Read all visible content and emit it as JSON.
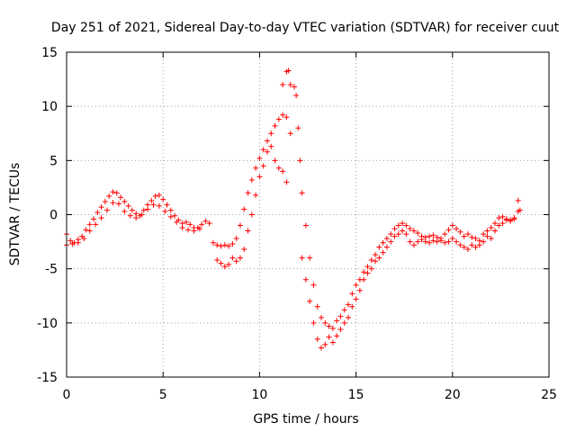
{
  "chart_data": {
    "type": "scatter",
    "title": "Day 251 of 2021, Sidereal Day-to-day VTEC variation (SDTVAR) for receiver cuut",
    "xlabel": "GPS time / hours",
    "ylabel": "SDTVAR / TECUs",
    "xlim": [
      0,
      25
    ],
    "ylim": [
      -15,
      15
    ],
    "xticks": [
      "0",
      "5",
      "10",
      "15",
      "20",
      "25"
    ],
    "yticks": [
      "-15",
      "-10",
      "-5",
      "0",
      "5",
      "10",
      "15"
    ],
    "grid": true,
    "marker": "plus",
    "series": [
      {
        "name": "SDTVAR",
        "color": "#ff0000",
        "points": [
          [
            0.0,
            -1.8
          ],
          [
            0.2,
            -2.4
          ],
          [
            0.4,
            -2.6
          ],
          [
            0.6,
            -2.3
          ],
          [
            0.8,
            -2.0
          ],
          [
            1.0,
            -1.4
          ],
          [
            1.2,
            -0.9
          ],
          [
            1.4,
            -0.4
          ],
          [
            1.6,
            0.2
          ],
          [
            1.8,
            0.7
          ],
          [
            2.0,
            1.2
          ],
          [
            2.2,
            1.7
          ],
          [
            2.4,
            2.1
          ],
          [
            2.6,
            2.0
          ],
          [
            2.8,
            1.6
          ],
          [
            3.0,
            1.2
          ],
          [
            3.2,
            0.8
          ],
          [
            3.4,
            0.4
          ],
          [
            3.6,
            0.1
          ],
          [
            3.8,
            -0.1
          ],
          [
            4.0,
            0.4
          ],
          [
            4.2,
            0.9
          ],
          [
            4.4,
            1.3
          ],
          [
            4.6,
            1.7
          ],
          [
            4.8,
            1.8
          ],
          [
            5.0,
            1.4
          ],
          [
            5.2,
            0.9
          ],
          [
            5.4,
            0.4
          ],
          [
            5.6,
            -0.1
          ],
          [
            5.8,
            -0.5
          ],
          [
            6.0,
            -0.8
          ],
          [
            6.2,
            -0.7
          ],
          [
            6.4,
            -0.9
          ],
          [
            6.6,
            -1.2
          ],
          [
            6.8,
            -1.2
          ],
          [
            7.0,
            -0.9
          ],
          [
            7.2,
            -0.6
          ],
          [
            7.4,
            -0.8
          ],
          [
            7.6,
            -2.6
          ],
          [
            7.8,
            -2.8
          ],
          [
            8.0,
            -2.9
          ],
          [
            8.2,
            -2.8
          ],
          [
            8.4,
            -2.9
          ],
          [
            8.6,
            -2.7
          ],
          [
            8.8,
            -2.2
          ],
          [
            9.0,
            -1.0
          ],
          [
            9.2,
            0.5
          ],
          [
            9.4,
            2.0
          ],
          [
            9.6,
            3.2
          ],
          [
            9.8,
            4.3
          ],
          [
            10.0,
            5.2
          ],
          [
            10.2,
            6.0
          ],
          [
            10.4,
            6.8
          ],
          [
            10.6,
            7.5
          ],
          [
            10.8,
            8.2
          ],
          [
            11.0,
            8.8
          ],
          [
            11.2,
            9.2
          ],
          [
            11.4,
            9.0
          ],
          [
            11.6,
            7.5
          ],
          [
            11.2,
            12.0
          ],
          [
            11.4,
            13.2
          ],
          [
            11.5,
            13.3
          ],
          [
            11.6,
            12.0
          ],
          [
            11.8,
            11.8
          ],
          [
            11.9,
            11.0
          ],
          [
            12.0,
            8.0
          ],
          [
            12.1,
            5.0
          ],
          [
            12.2,
            2.0
          ],
          [
            12.4,
            -1.0
          ],
          [
            12.6,
            -4.0
          ],
          [
            12.8,
            -6.5
          ],
          [
            13.0,
            -8.5
          ],
          [
            13.2,
            -9.5
          ],
          [
            13.4,
            -10.0
          ],
          [
            13.6,
            -10.3
          ],
          [
            13.8,
            -10.5
          ],
          [
            14.0,
            -9.8
          ],
          [
            14.2,
            -9.4
          ],
          [
            14.4,
            -8.8
          ],
          [
            14.6,
            -8.3
          ],
          [
            14.8,
            -7.3
          ],
          [
            15.0,
            -6.5
          ],
          [
            15.2,
            -6.0
          ],
          [
            15.4,
            -5.3
          ],
          [
            15.6,
            -4.8
          ],
          [
            15.8,
            -4.2
          ],
          [
            16.0,
            -3.7
          ],
          [
            16.2,
            -3.0
          ],
          [
            16.4,
            -2.6
          ],
          [
            16.6,
            -2.2
          ],
          [
            16.8,
            -1.8
          ],
          [
            17.0,
            -1.3
          ],
          [
            17.2,
            -1.0
          ],
          [
            17.4,
            -0.8
          ],
          [
            17.6,
            -1.0
          ],
          [
            17.8,
            -1.3
          ],
          [
            18.0,
            -1.5
          ],
          [
            18.2,
            -1.7
          ],
          [
            18.4,
            -2.0
          ],
          [
            18.6,
            -2.1
          ],
          [
            18.8,
            -2.0
          ],
          [
            19.0,
            -1.9
          ],
          [
            19.2,
            -2.1
          ],
          [
            19.4,
            -2.2
          ],
          [
            19.6,
            -1.8
          ],
          [
            19.8,
            -1.4
          ],
          [
            20.0,
            -1.0
          ],
          [
            20.2,
            -1.3
          ],
          [
            20.4,
            -1.6
          ],
          [
            20.6,
            -2.0
          ],
          [
            20.8,
            -1.8
          ],
          [
            21.0,
            -2.1
          ],
          [
            21.2,
            -2.2
          ],
          [
            21.4,
            -2.4
          ],
          [
            21.6,
            -1.8
          ],
          [
            21.8,
            -1.5
          ],
          [
            22.0,
            -1.2
          ],
          [
            22.2,
            -0.8
          ],
          [
            22.4,
            -0.3
          ],
          [
            22.6,
            -0.2
          ],
          [
            22.8,
            -0.4
          ],
          [
            23.0,
            -0.5
          ],
          [
            23.2,
            -0.3
          ],
          [
            23.4,
            0.3
          ],
          [
            23.5,
            0.4
          ],
          [
            0.0,
            -2.8
          ],
          [
            0.3,
            -2.7
          ],
          [
            0.6,
            -2.6
          ],
          [
            0.9,
            -2.2
          ],
          [
            1.2,
            -1.5
          ],
          [
            1.5,
            -0.9
          ],
          [
            1.8,
            -0.3
          ],
          [
            2.1,
            0.4
          ],
          [
            2.4,
            1.1
          ],
          [
            2.7,
            1.0
          ],
          [
            3.0,
            0.3
          ],
          [
            3.3,
            -0.1
          ],
          [
            3.6,
            -0.3
          ],
          [
            3.9,
            0.0
          ],
          [
            4.2,
            0.5
          ],
          [
            4.5,
            0.9
          ],
          [
            4.8,
            0.8
          ],
          [
            5.1,
            0.3
          ],
          [
            5.4,
            -0.2
          ],
          [
            5.7,
            -0.7
          ],
          [
            6.0,
            -1.2
          ],
          [
            6.3,
            -1.4
          ],
          [
            6.6,
            -1.5
          ],
          [
            6.9,
            -1.3
          ],
          [
            7.8,
            -4.2
          ],
          [
            8.0,
            -4.5
          ],
          [
            8.2,
            -4.8
          ],
          [
            8.4,
            -4.6
          ],
          [
            8.6,
            -4.0
          ],
          [
            8.8,
            -4.3
          ],
          [
            9.0,
            -4.0
          ],
          [
            9.2,
            -3.2
          ],
          [
            9.4,
            -1.5
          ],
          [
            9.6,
            0.0
          ],
          [
            9.8,
            1.8
          ],
          [
            10.0,
            3.5
          ],
          [
            10.2,
            4.5
          ],
          [
            10.4,
            5.8
          ],
          [
            10.6,
            6.3
          ],
          [
            10.8,
            5.0
          ],
          [
            11.0,
            4.3
          ],
          [
            11.2,
            4.0
          ],
          [
            11.4,
            3.0
          ],
          [
            12.2,
            -4.0
          ],
          [
            12.4,
            -6.0
          ],
          [
            12.6,
            -8.0
          ],
          [
            12.8,
            -10.0
          ],
          [
            13.0,
            -11.5
          ],
          [
            13.2,
            -12.3
          ],
          [
            13.4,
            -12.0
          ],
          [
            13.6,
            -11.3
          ],
          [
            13.8,
            -11.8
          ],
          [
            14.0,
            -11.2
          ],
          [
            14.2,
            -10.6
          ],
          [
            14.4,
            -10.0
          ],
          [
            14.6,
            -9.5
          ],
          [
            14.8,
            -8.5
          ],
          [
            15.0,
            -7.8
          ],
          [
            15.2,
            -7.0
          ],
          [
            15.4,
            -6.0
          ],
          [
            15.6,
            -5.4
          ],
          [
            15.8,
            -5.0
          ],
          [
            16.0,
            -4.3
          ],
          [
            16.2,
            -4.0
          ],
          [
            16.4,
            -3.5
          ],
          [
            16.6,
            -3.0
          ],
          [
            16.8,
            -2.5
          ],
          [
            17.0,
            -2.0
          ],
          [
            17.2,
            -1.8
          ],
          [
            17.4,
            -1.5
          ],
          [
            17.6,
            -1.8
          ],
          [
            17.8,
            -2.5
          ],
          [
            18.0,
            -2.8
          ],
          [
            18.2,
            -2.5
          ],
          [
            18.4,
            -2.3
          ],
          [
            18.6,
            -2.5
          ],
          [
            18.8,
            -2.6
          ],
          [
            19.0,
            -2.4
          ],
          [
            19.2,
            -2.5
          ],
          [
            19.4,
            -2.4
          ],
          [
            19.6,
            -2.6
          ],
          [
            19.8,
            -2.5
          ],
          [
            20.0,
            -2.2
          ],
          [
            20.2,
            -2.5
          ],
          [
            20.4,
            -2.8
          ],
          [
            20.6,
            -3.0
          ],
          [
            20.8,
            -3.2
          ],
          [
            21.0,
            -2.8
          ],
          [
            21.2,
            -3.0
          ],
          [
            21.4,
            -2.8
          ],
          [
            21.6,
            -2.5
          ],
          [
            21.8,
            -2.0
          ],
          [
            22.0,
            -2.2
          ],
          [
            22.2,
            -1.5
          ],
          [
            22.4,
            -1.0
          ],
          [
            22.6,
            -0.8
          ],
          [
            22.8,
            -0.5
          ],
          [
            23.0,
            -0.6
          ],
          [
            23.2,
            -0.4
          ],
          [
            23.4,
            1.3
          ]
        ]
      }
    ]
  }
}
